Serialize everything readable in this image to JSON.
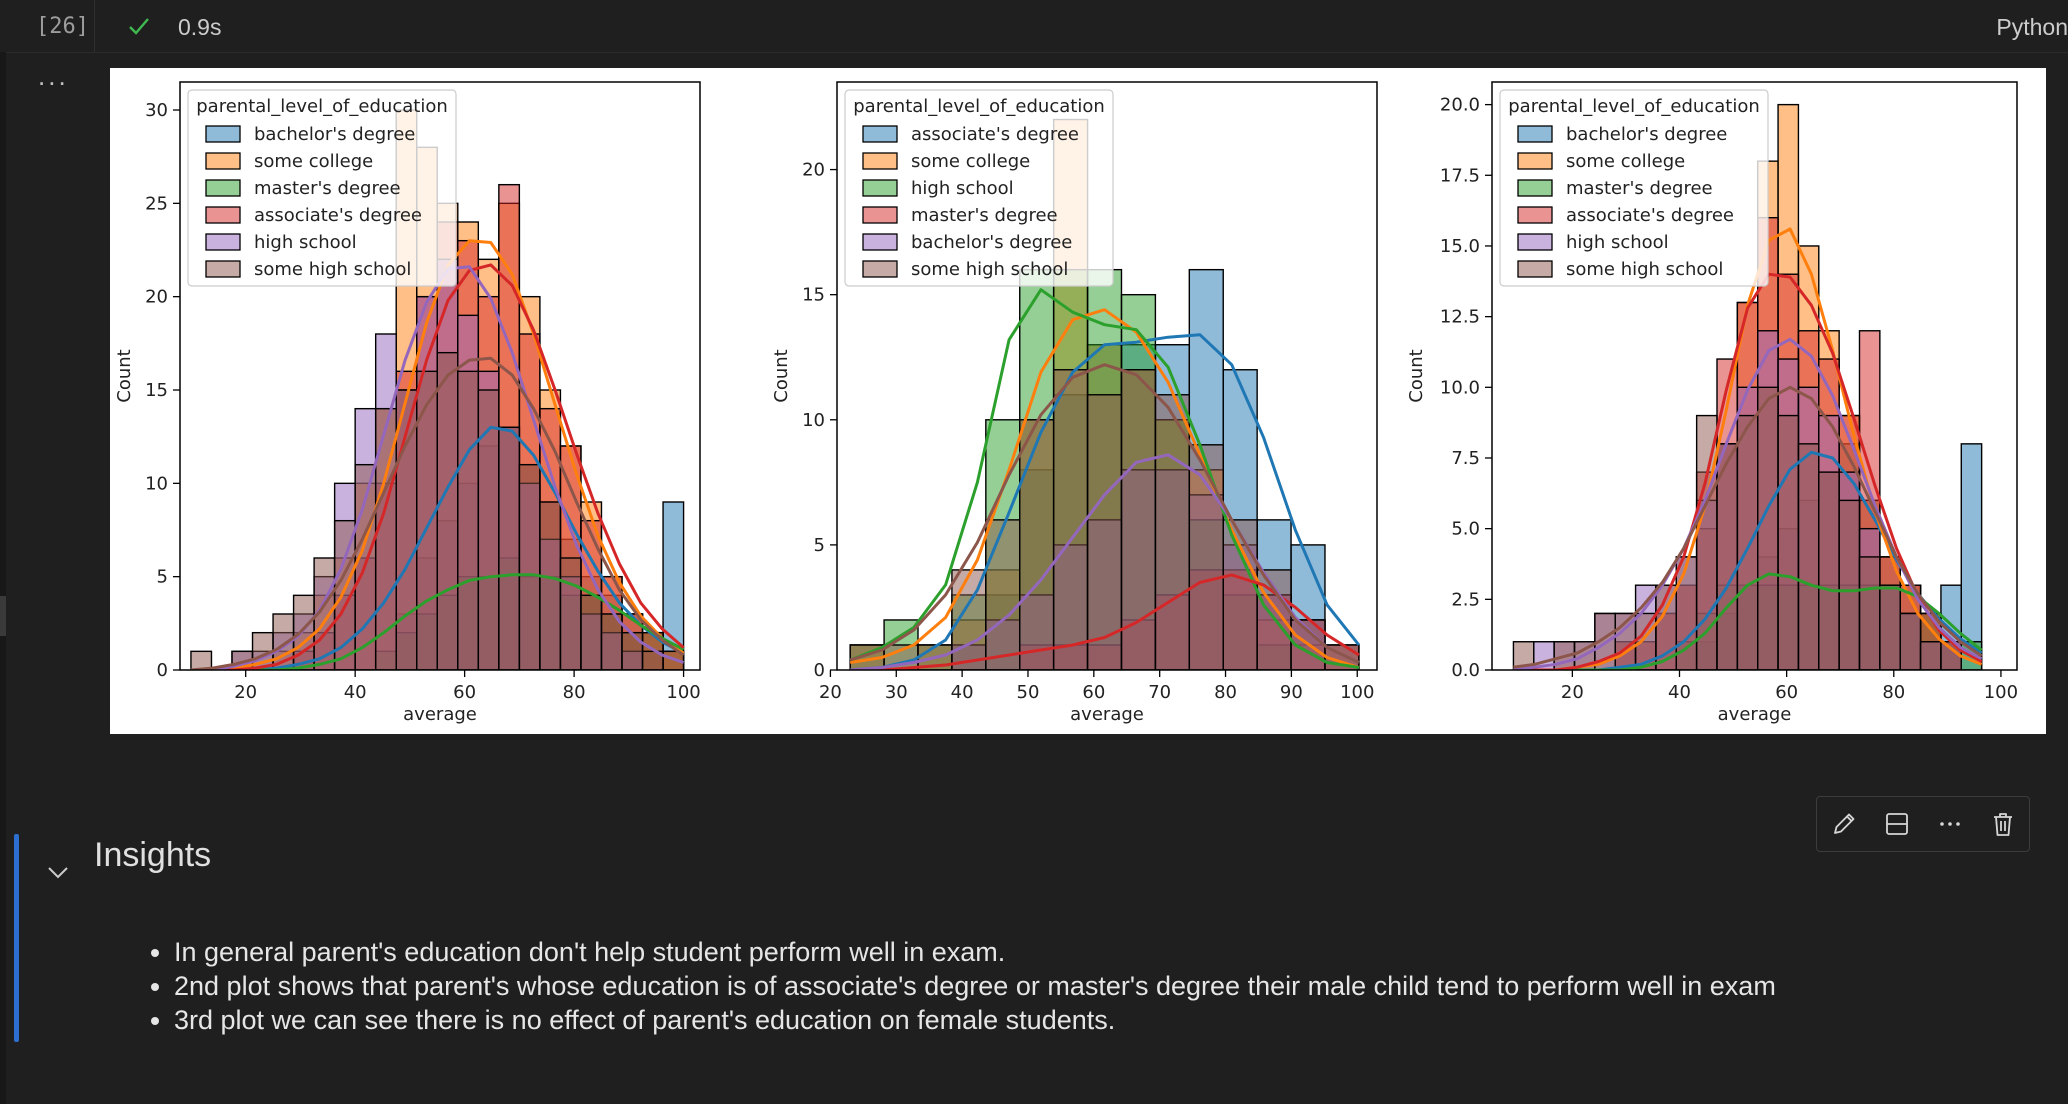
{
  "cell": {
    "execution_count": "[26]",
    "status_icon": "check-icon",
    "duration": "0.9s",
    "kernel": "Python",
    "output_menu": "..."
  },
  "toolbar": {
    "icons": [
      "pencil-icon",
      "split-cell-icon",
      "more-icon",
      "trash-icon"
    ]
  },
  "markdown": {
    "heading": "Insights",
    "bullets": [
      "In general parent's education don't help student perform well in exam.",
      "2nd plot shows that parent's whose education is of associate's degree or master's degree their male child tend to perform well in exam",
      "3rd plot we can see there is no effect of parent's education on female students."
    ]
  },
  "colors": {
    "accent": "#2d6fd0",
    "success": "#3fb950",
    "background": "#1f1f1f"
  },
  "chart_data": [
    {
      "type": "histogram",
      "title": "",
      "xlabel": "average",
      "ylabel": "Count",
      "xlim": [
        8,
        103
      ],
      "ylim": [
        0,
        31.5
      ],
      "xticks": [
        20,
        40,
        60,
        80,
        100
      ],
      "yticks": [
        0,
        5,
        10,
        15,
        20,
        25,
        30
      ],
      "legend_title": "parental_level_of_education",
      "legend_position": "top-left",
      "bin_start": 10,
      "bin_width": 3.75,
      "series": [
        {
          "name": "bachelor's degree",
          "color": "#1f77b4",
          "counts": [
            0,
            0,
            0,
            0,
            0,
            0,
            0,
            0,
            0,
            0,
            3,
            6,
            8,
            10,
            12,
            13,
            11,
            9,
            7,
            5,
            4,
            3,
            2,
            9
          ],
          "kde": [
            0,
            0,
            0,
            0,
            0.1,
            0.3,
            0.6,
            1.2,
            2.2,
            3.6,
            5.4,
            7.6,
            9.8,
            11.8,
            13,
            12.8,
            11.5,
            9.5,
            7.3,
            5.3,
            3.6,
            2.4,
            1.5,
            0.9
          ]
        },
        {
          "name": "some college",
          "color": "#ff7f0e",
          "counts": [
            0,
            0,
            0,
            0,
            1,
            2,
            4,
            6,
            10,
            14,
            30,
            28,
            25,
            24,
            22,
            25,
            20,
            15,
            12,
            9,
            5,
            3,
            2,
            1
          ],
          "kde": [
            0,
            0,
            0.1,
            0.3,
            0.6,
            1.2,
            2.2,
            3.9,
            6.4,
            10,
            14.3,
            18.6,
            21.7,
            23,
            22.9,
            21.2,
            18,
            14.2,
            10.5,
            7.2,
            4.7,
            2.9,
            1.7,
            0.9
          ]
        },
        {
          "name": "master's degree",
          "color": "#2ca02c",
          "counts": [
            0,
            0,
            0,
            0,
            0,
            0,
            0,
            0,
            0,
            1,
            2,
            3,
            4,
            5,
            5,
            6,
            5,
            5,
            4,
            4,
            3,
            2,
            2,
            1
          ],
          "kde": [
            0,
            0,
            0,
            0,
            0,
            0.1,
            0.3,
            0.6,
            1.2,
            2,
            2.9,
            3.7,
            4.3,
            4.8,
            5,
            5.1,
            5.1,
            4.9,
            4.5,
            3.9,
            3.2,
            2.4,
            1.7,
            1.1
          ]
        },
        {
          "name": "associate's degree",
          "color": "#d62728",
          "counts": [
            0,
            0,
            0,
            0,
            0,
            1,
            2,
            4,
            6,
            10,
            16,
            20,
            24,
            23,
            20,
            26,
            18,
            14,
            12,
            8,
            5,
            3,
            2,
            1
          ],
          "kde": [
            0,
            0,
            0,
            0.1,
            0.3,
            0.8,
            1.6,
            3,
            5.2,
            8.4,
            12.5,
            16.6,
            19.8,
            21.4,
            21.7,
            20.6,
            18.2,
            15,
            11.6,
            8.4,
            5.7,
            3.6,
            2.2,
            1.2
          ]
        },
        {
          "name": "high school",
          "color": "#9467bd",
          "counts": [
            0,
            0,
            1,
            1,
            2,
            3,
            5,
            10,
            14,
            18,
            15,
            20,
            22,
            19,
            16,
            13,
            10,
            7,
            5,
            3,
            2,
            1,
            0,
            0
          ],
          "kde": [
            0,
            0,
            0.2,
            0.5,
            1,
            1.8,
            3.2,
            5.4,
            8.6,
            12.6,
            16.6,
            19.7,
            21.5,
            21.6,
            19.9,
            17,
            13.4,
            9.8,
            6.7,
            4.3,
            2.6,
            1.5,
            0.8,
            0.4
          ]
        },
        {
          "name": "some high school",
          "color": "#8c564b",
          "counts": [
            1,
            0,
            1,
            2,
            3,
            4,
            6,
            8,
            11,
            14,
            15,
            16,
            17,
            16,
            15,
            13,
            11,
            9,
            6,
            4,
            3,
            2,
            1,
            0
          ],
          "kde": [
            0,
            0.1,
            0.3,
            0.6,
            1.1,
            1.9,
            3.1,
            4.8,
            7,
            9.5,
            12,
            14.2,
            15.8,
            16.6,
            16.7,
            15.8,
            14,
            11.7,
            9,
            6.5,
            4.3,
            2.7,
            1.6,
            0.8
          ]
        }
      ]
    },
    {
      "type": "histogram",
      "title": "",
      "xlabel": "average",
      "ylabel": "Count",
      "xlim": [
        21,
        103
      ],
      "ylim": [
        0,
        23.5
      ],
      "xticks": [
        20,
        30,
        40,
        50,
        60,
        70,
        80,
        90,
        100
      ],
      "yticks": [
        0,
        5,
        10,
        15,
        20
      ],
      "legend_title": "parental_level_of_education",
      "legend_position": "top-left",
      "bin_start": 23,
      "bin_width": 5.15,
      "series": [
        {
          "name": "associate's degree",
          "color": "#1f77b4",
          "counts": [
            0,
            0,
            0,
            1,
            3,
            8,
            11,
            13,
            13,
            13,
            16,
            12,
            6,
            5,
            1
          ],
          "kde": [
            0,
            0.1,
            0.4,
            1.2,
            3.2,
            6.3,
            9.5,
            11.9,
            13,
            13.1,
            13.3,
            13.4,
            12.2,
            9.3,
            5.6,
            2.6,
            1
          ]
        },
        {
          "name": "some college",
          "color": "#ff7f0e",
          "counts": [
            1,
            0,
            1,
            2,
            4,
            10,
            22,
            13,
            12,
            10,
            8,
            4,
            2,
            1,
            0
          ],
          "kde": [
            0.3,
            0.5,
            1,
            2.1,
            4.4,
            8,
            11.9,
            14,
            14.4,
            13.5,
            11.5,
            8.6,
            5.6,
            3.1,
            1.4,
            0.5,
            0.1
          ]
        },
        {
          "name": "high school",
          "color": "#2ca02c",
          "counts": [
            1,
            2,
            1,
            3,
            10,
            16,
            16,
            16,
            15,
            10,
            6,
            3,
            1,
            0,
            0
          ],
          "kde": [
            0.4,
            0.9,
            1.7,
            3.4,
            7.5,
            13.2,
            15.2,
            14.3,
            13.8,
            13.6,
            12.1,
            9,
            5.4,
            2.6,
            1,
            0.3,
            0.1
          ]
        },
        {
          "name": "master's degree",
          "color": "#d62728",
          "counts": [
            0,
            0,
            0,
            0,
            0,
            1,
            1,
            1,
            2,
            3,
            4,
            4,
            3,
            2,
            1
          ],
          "kde": [
            0,
            0,
            0.1,
            0.2,
            0.4,
            0.6,
            0.8,
            1,
            1.3,
            1.9,
            2.7,
            3.5,
            3.8,
            3.4,
            2.5,
            1.4,
            0.6
          ]
        },
        {
          "name": "bachelor's degree",
          "color": "#9467bd",
          "counts": [
            0,
            0,
            0,
            1,
            2,
            3,
            5,
            6,
            8,
            8,
            7,
            5,
            3,
            2,
            0
          ],
          "kde": [
            0,
            0.1,
            0.3,
            0.6,
            1.2,
            2.2,
            3.6,
            5.3,
            7,
            8.3,
            8.6,
            7.8,
            6,
            3.9,
            2.1,
            0.9,
            0.3
          ]
        },
        {
          "name": "some high school",
          "color": "#8c564b",
          "counts": [
            1,
            1,
            1,
            4,
            6,
            10,
            12,
            11,
            12,
            11,
            9,
            6,
            4,
            2,
            1
          ],
          "kde": [
            0.4,
            0.8,
            1.6,
            3,
            5.1,
            7.8,
            10.2,
            11.7,
            12.2,
            11.8,
            10.5,
            8.4,
            6,
            3.8,
            2,
            0.9,
            0.3
          ]
        }
      ]
    },
    {
      "type": "histogram",
      "title": "",
      "xlabel": "average",
      "ylabel": "Count",
      "xlim": [
        5,
        103
      ],
      "ylim": [
        0,
        20.8
      ],
      "xticks": [
        20,
        40,
        60,
        80,
        100
      ],
      "yticks": [
        0.0,
        2.5,
        5.0,
        7.5,
        10.0,
        12.5,
        15.0,
        17.5,
        20.0
      ],
      "legend_title": "parental_level_of_education",
      "legend_position": "top-left",
      "bin_start": 9,
      "bin_width": 3.8,
      "series": [
        {
          "name": "bachelor's degree",
          "color": "#1f77b4",
          "counts": [
            0,
            0,
            0,
            0,
            0,
            0,
            0,
            0,
            0,
            1,
            2,
            3,
            4,
            5,
            6,
            7,
            8,
            6,
            4,
            3,
            2,
            3,
            8
          ],
          "kde": [
            0,
            0,
            0,
            0,
            0,
            0.1,
            0.2,
            0.5,
            1,
            1.8,
            2.9,
            4.3,
            5.8,
            7.1,
            7.7,
            7.5,
            6.6,
            5.3,
            3.9,
            2.7,
            1.8,
            1.1,
            0.6
          ]
        },
        {
          "name": "some college",
          "color": "#ff7f0e",
          "counts": [
            0,
            0,
            0,
            0,
            0,
            1,
            1,
            2,
            3,
            5,
            8,
            13,
            18,
            20,
            15,
            12,
            9,
            6,
            4,
            3,
            2,
            1,
            0
          ],
          "kde": [
            0,
            0,
            0,
            0.1,
            0.2,
            0.5,
            1,
            1.9,
            3.4,
            5.8,
            9.2,
            12.9,
            15.2,
            15.6,
            14,
            11.3,
            8.3,
            5.6,
            3.5,
            2,
            1.1,
            0.5,
            0.2
          ]
        },
        {
          "name": "master's degree",
          "color": "#2ca02c",
          "counts": [
            0,
            0,
            0,
            0,
            0,
            0,
            0,
            0,
            1,
            2,
            3,
            3,
            3,
            3,
            3,
            3,
            3,
            3,
            3,
            2,
            2,
            1,
            1
          ],
          "kde": [
            0,
            0,
            0,
            0,
            0,
            0,
            0.1,
            0.3,
            0.7,
            1.3,
            2.2,
            3,
            3.4,
            3.3,
            3,
            2.8,
            2.8,
            2.9,
            2.9,
            2.6,
            2,
            1.3,
            0.7
          ]
        },
        {
          "name": "associate's degree",
          "color": "#d62728",
          "counts": [
            0,
            0,
            0,
            0,
            0,
            1,
            1,
            2,
            3,
            7,
            11,
            13,
            16,
            14,
            12,
            11,
            9,
            12,
            4,
            3,
            2,
            1,
            0
          ],
          "kde": [
            0,
            0,
            0,
            0.1,
            0.3,
            0.6,
            1.2,
            2.3,
            4,
            6.6,
            9.9,
            12.8,
            14,
            13.9,
            12.9,
            11.2,
            8.9,
            6.5,
            4.3,
            2.6,
            1.4,
            0.7,
            0.3
          ]
        },
        {
          "name": "high school",
          "color": "#9467bd",
          "counts": [
            0,
            1,
            1,
            1,
            2,
            2,
            3,
            3,
            4,
            6,
            8,
            10,
            12,
            11,
            10,
            9,
            7,
            5,
            3,
            2,
            1,
            1,
            0
          ],
          "kde": [
            0,
            0.1,
            0.2,
            0.4,
            0.8,
            1.3,
            2,
            3,
            4.3,
            6,
            8,
            9.9,
            11.3,
            11.7,
            11.1,
            9.7,
            7.8,
            5.8,
            4,
            2.5,
            1.5,
            0.8,
            0.4
          ]
        },
        {
          "name": "some high school",
          "color": "#8c564b",
          "counts": [
            1,
            0,
            1,
            1,
            2,
            2,
            2,
            3,
            4,
            9,
            8,
            9,
            10,
            9,
            8,
            7,
            6,
            4,
            3,
            2,
            1,
            1,
            0
          ],
          "kde": [
            0.1,
            0.2,
            0.4,
            0.6,
            1,
            1.5,
            2.2,
            3.1,
            4.3,
            5.8,
            7.3,
            8.6,
            9.6,
            10,
            9.6,
            8.6,
            7.2,
            5.6,
            4,
            2.7,
            1.7,
            1,
            0.5
          ]
        }
      ]
    }
  ]
}
